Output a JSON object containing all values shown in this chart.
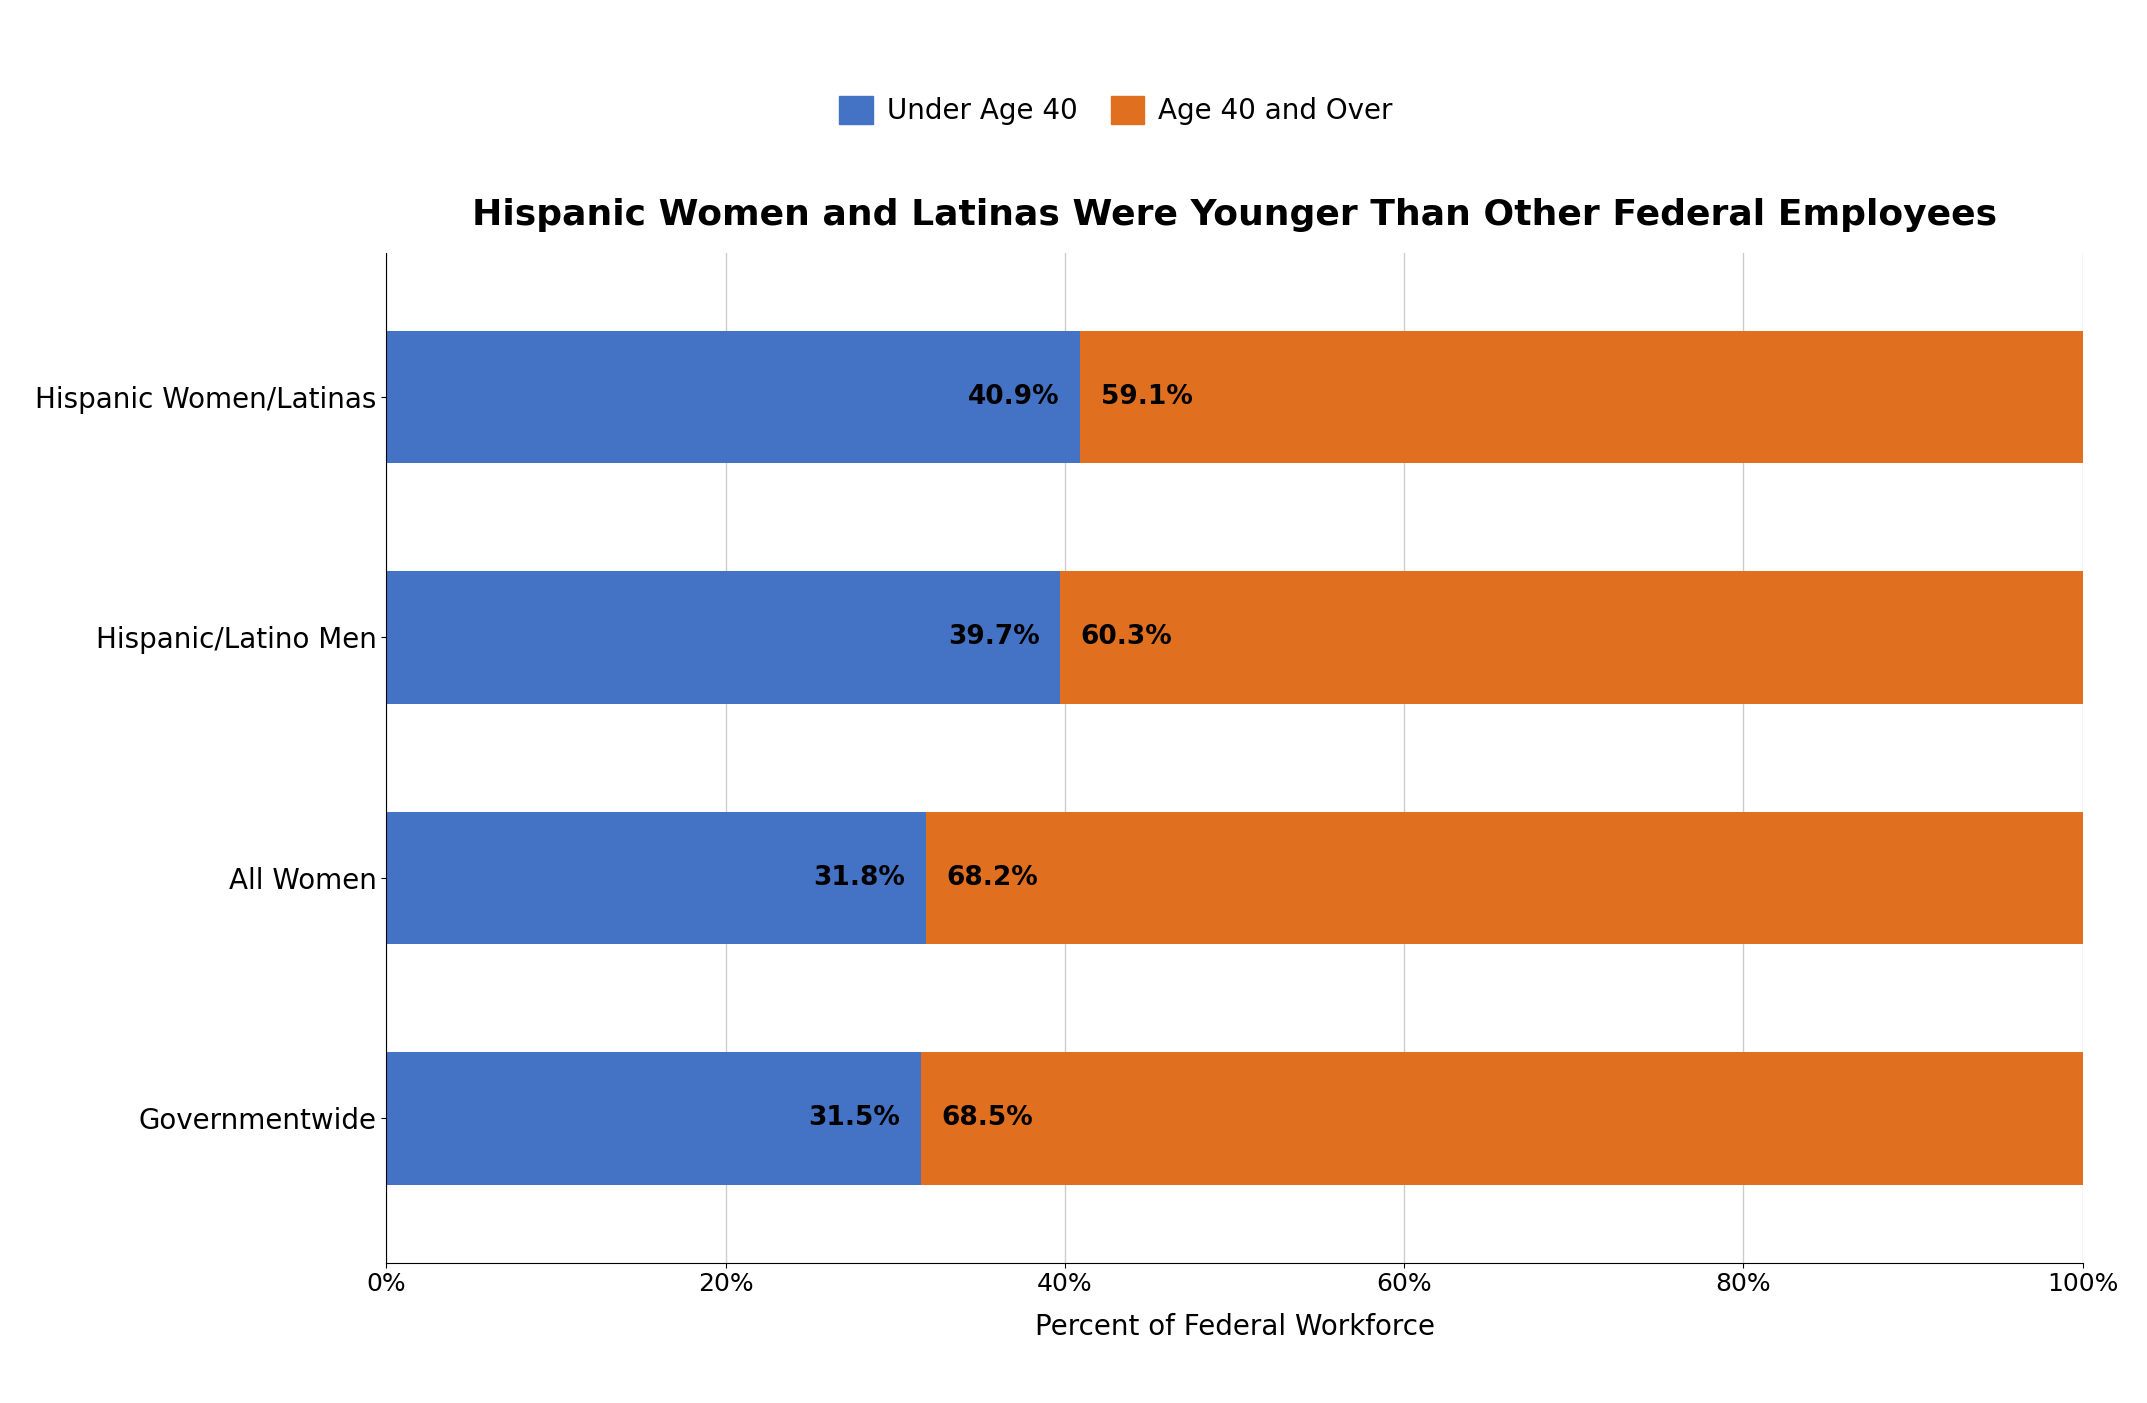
{
  "title": "Hispanic Women and Latinas Were Younger Than Other Federal Employees",
  "categories": [
    "Hispanic Women/Latinas",
    "Hispanic/Latino Men",
    "All Women",
    "Governmentwide"
  ],
  "under_40": [
    40.9,
    39.7,
    31.8,
    31.5
  ],
  "age_40_over": [
    59.1,
    60.3,
    68.2,
    68.5
  ],
  "color_under_40": "#4472C4",
  "color_age_40_over": "#E07020",
  "xlabel": "Percent of Federal Workforce",
  "legend_under_40": "Under Age 40",
  "legend_age_40_over": "Age 40 and Over",
  "xtick_labels": [
    "0%",
    "20%",
    "40%",
    "60%",
    "80%",
    "100%"
  ],
  "xtick_values": [
    0,
    20,
    40,
    60,
    80,
    100
  ],
  "background_color": "#ffffff",
  "title_fontsize": 26,
  "label_fontsize": 20,
  "tick_fontsize": 18,
  "bar_label_fontsize": 19,
  "legend_fontsize": 20,
  "bar_height": 0.55
}
